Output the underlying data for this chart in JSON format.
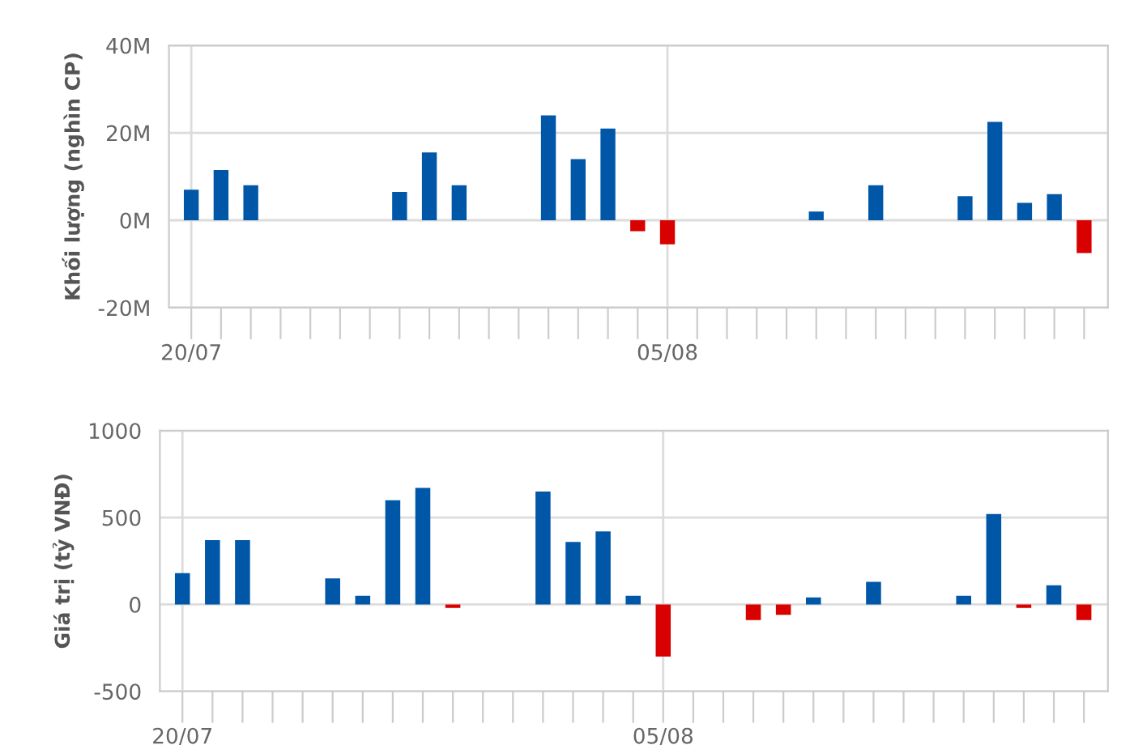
{
  "chart_data": [
    {
      "type": "bar",
      "ylabel": "Khối lượng (nghìn CP)",
      "categories": [
        "20/07",
        null,
        null,
        null,
        null,
        null,
        null,
        null,
        null,
        null,
        null,
        null,
        null,
        null,
        null,
        null,
        "05/08",
        null,
        null,
        null,
        null,
        null,
        null,
        null,
        null,
        null,
        null,
        null,
        null,
        null,
        null
      ],
      "values": [
        7,
        11.5,
        8,
        null,
        null,
        null,
        null,
        6.5,
        15.5,
        8,
        null,
        null,
        24,
        14,
        21,
        -2.5,
        -5.5,
        null,
        null,
        null,
        null,
        2,
        null,
        8,
        null,
        null,
        5.5,
        22.5,
        4,
        6,
        -7.5
      ],
      "colors": [
        "#0057a8",
        "#0057a8",
        "#0057a8",
        null,
        null,
        null,
        null,
        "#0057a8",
        "#0057a8",
        "#0057a8",
        null,
        null,
        "#0057a8",
        "#0057a8",
        "#0057a8",
        "#d90000",
        "#d90000",
        null,
        null,
        null,
        null,
        "#0057a8",
        null,
        "#0057a8",
        null,
        null,
        "#0057a8",
        "#0057a8",
        "#0057a8",
        "#0057a8",
        "#d90000"
      ],
      "ylim": [
        -20,
        40
      ],
      "yticks": [
        {
          "value": -20,
          "label": "-20M"
        },
        {
          "value": 0,
          "label": "0M"
        },
        {
          "value": 20,
          "label": "20M"
        },
        {
          "value": 40,
          "label": "40M"
        }
      ],
      "grid": true
    },
    {
      "type": "bar",
      "ylabel": "Giá trị (tỷ VNĐ)",
      "categories": [
        "20/07",
        null,
        null,
        null,
        null,
        null,
        null,
        null,
        null,
        null,
        null,
        null,
        null,
        null,
        null,
        null,
        "05/08",
        null,
        null,
        null,
        null,
        null,
        null,
        null,
        null,
        null,
        null,
        null,
        null,
        null,
        null
      ],
      "values": [
        180,
        370,
        370,
        null,
        null,
        150,
        50,
        600,
        670,
        -20,
        null,
        null,
        650,
        360,
        420,
        50,
        -300,
        null,
        null,
        -90,
        -60,
        40,
        null,
        130,
        null,
        null,
        50,
        520,
        -20,
        110,
        -90
      ],
      "colors": [
        "#0057a8",
        "#0057a8",
        "#0057a8",
        null,
        null,
        "#0057a8",
        "#0057a8",
        "#0057a8",
        "#0057a8",
        "#d90000",
        null,
        null,
        "#0057a8",
        "#0057a8",
        "#0057a8",
        "#0057a8",
        "#d90000",
        null,
        null,
        "#d90000",
        "#d90000",
        "#0057a8",
        null,
        "#0057a8",
        null,
        null,
        "#0057a8",
        "#0057a8",
        "#d90000",
        "#0057a8",
        "#d90000"
      ],
      "ylim": [
        -500,
        1000
      ],
      "yticks": [
        -500,
        0,
        500,
        1000
      ],
      "grid": true
    }
  ]
}
